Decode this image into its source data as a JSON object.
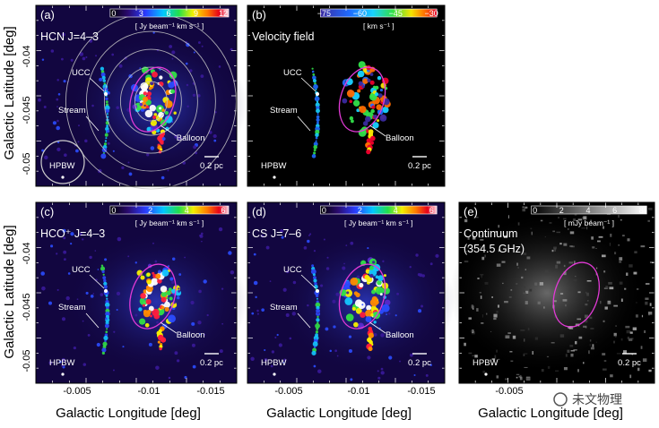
{
  "figure": {
    "y_axis_label": "Galactic Latitude  [deg]",
    "x_axis_label": "Galactic Longitude  [deg]",
    "y_ticks": [
      "-0.04",
      "-0.045",
      "-0.05"
    ],
    "x_ticks": [
      "-0.005",
      "-0.01",
      "-0.015"
    ],
    "watermark": "未文物理"
  },
  "panels": [
    {
      "id": "a",
      "letter": "(a)",
      "title": "HCN J=4–3",
      "colorbar_ticks": [
        "0",
        "3",
        "6",
        "9",
        "12"
      ],
      "unit": "[ Jy beam⁻¹ km s⁻¹ ]",
      "labels": {
        "ucc": "UCC",
        "stream": "Stream",
        "balloon": "Balloon",
        "hpbw": "HPBW"
      },
      "scalebar": "0.2 pc",
      "style": "intensity",
      "contours": true
    },
    {
      "id": "b",
      "letter": "(b)",
      "title": "Velocity field",
      "colorbar_ticks": [
        "−75",
        "−60",
        "−45",
        "−30"
      ],
      "unit": "[ km s⁻¹ ]",
      "labels": {
        "ucc": "UCC",
        "stream": "Stream",
        "balloon": "Balloon",
        "hpbw": "HPBW"
      },
      "scalebar": "0.2 pc",
      "style": "velocity",
      "contours": false
    },
    {
      "id": "c",
      "letter": "(c)",
      "title": "HCO⁺ J=4–3",
      "colorbar_ticks": [
        "0",
        "2",
        "4",
        "6"
      ],
      "unit": "[ Jy beam⁻¹ km s⁻¹ ]",
      "labels": {
        "ucc": "UCC",
        "stream": "Stream",
        "balloon": "Balloon",
        "hpbw": "HPBW"
      },
      "scalebar": "0.2 pc",
      "style": "intensity",
      "contours": false
    },
    {
      "id": "d",
      "letter": "(d)",
      "title": "CS J=7–6",
      "colorbar_ticks": [
        "0",
        "2",
        "4",
        "6"
      ],
      "unit": "[ Jy beam⁻¹ km s⁻¹ ]",
      "labels": {
        "ucc": "UCC",
        "stream": "Stream",
        "balloon": "Balloon",
        "hpbw": "HPBW"
      },
      "scalebar": "0.2 pc",
      "style": "intensity",
      "contours": false
    },
    {
      "id": "e",
      "letter": "(e)",
      "title": "Continuum",
      "subtitle": "(354.5 GHz)",
      "colorbar_ticks": [
        "0",
        "2",
        "4",
        "6",
        "8"
      ],
      "unit": "[ mJy beam⁻¹ ]",
      "labels": {
        "ucc": "",
        "stream": "",
        "balloon": "",
        "hpbw": "HPBW"
      },
      "scalebar": "0.2 pc",
      "style": "continuum",
      "contours": false
    }
  ]
}
